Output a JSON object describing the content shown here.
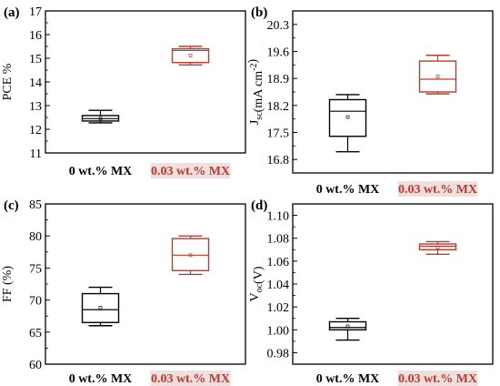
{
  "colors": {
    "series_0": "#000000",
    "series_1": "#c0392b",
    "axis": "#000000",
    "category_highlight": "#f3dede"
  },
  "chart_data": [
    {
      "panel": "(a)",
      "type": "box",
      "ylabel_parts": [
        {
          "t": "PCE %"
        }
      ],
      "ylim": [
        11,
        17
      ],
      "yticks": [
        "11",
        "12",
        "13",
        "14",
        "15",
        "16",
        "17"
      ],
      "categories": [
        "0 wt.% MX",
        "0.03 wt.% MX"
      ],
      "boxes": [
        {
          "name": "0 wt.% MX",
          "min": 12.27,
          "q1": 12.35,
          "median": 12.45,
          "q3": 12.58,
          "max": 12.8,
          "mean": 12.45
        },
        {
          "name": "0.03 wt.% MX",
          "min": 14.72,
          "q1": 14.82,
          "median": 15.33,
          "q3": 15.4,
          "max": 15.5,
          "mean": 15.12
        }
      ]
    },
    {
      "panel": "(b)",
      "type": "box",
      "ylabel_parts": [
        {
          "t": "J"
        },
        {
          "t": "sc",
          "sub": true
        },
        {
          "t": "(mA cm"
        },
        {
          "t": "-2",
          "sup": true
        },
        {
          "t": ")"
        }
      ],
      "ylim": [
        16.45,
        20.65
      ],
      "yticks": [
        "16.8",
        "17.5",
        "18.2",
        "18.9",
        "19.6",
        "20.3"
      ],
      "categories": [
        "0 wt.% MX",
        "0.03 wt.% MX"
      ],
      "boxes": [
        {
          "name": "0 wt.% MX",
          "min": 17.0,
          "q1": 17.4,
          "median": 18.05,
          "q3": 18.35,
          "max": 18.48,
          "mean": 17.9
        },
        {
          "name": "0.03 wt.% MX",
          "min": 18.5,
          "q1": 18.55,
          "median": 18.88,
          "q3": 19.35,
          "max": 19.5,
          "mean": 18.95
        }
      ]
    },
    {
      "panel": "(c)",
      "type": "box",
      "ylabel_parts": [
        {
          "t": "FF (%)"
        }
      ],
      "ylim": [
        60,
        85
      ],
      "yticks": [
        "60",
        "65",
        "70",
        "75",
        "80",
        "85"
      ],
      "categories": [
        "0 wt.% MX",
        "0.03 wt.% MX"
      ],
      "boxes": [
        {
          "name": "0 wt.% MX",
          "min": 66.0,
          "q1": 66.5,
          "median": 68.5,
          "q3": 71.0,
          "max": 72.0,
          "mean": 68.8
        },
        {
          "name": "0.03 wt.% MX",
          "min": 74.0,
          "q1": 74.6,
          "median": 77.0,
          "q3": 79.6,
          "max": 80.0,
          "mean": 77.0
        }
      ]
    },
    {
      "panel": "(d)",
      "type": "box",
      "ylabel_parts": [
        {
          "t": "V"
        },
        {
          "t": "oc",
          "sub": true
        },
        {
          "t": "(V)"
        }
      ],
      "ylim": [
        0.97,
        1.11
      ],
      "yticks": [
        "0.98",
        "1.00",
        "1.02",
        "1.04",
        "1.06",
        "1.08",
        "1.10"
      ],
      "categories": [
        "0 wt.% MX",
        "0.03 wt.% MX"
      ],
      "boxes": [
        {
          "name": "0 wt.% MX",
          "min": 0.991,
          "q1": 1.0,
          "median": 1.002,
          "q3": 1.007,
          "max": 1.01,
          "mean": 1.003
        },
        {
          "name": "0.03 wt.% MX",
          "min": 1.066,
          "q1": 1.07,
          "median": 1.073,
          "q3": 1.075,
          "max": 1.077,
          "mean": 1.072
        }
      ]
    }
  ]
}
